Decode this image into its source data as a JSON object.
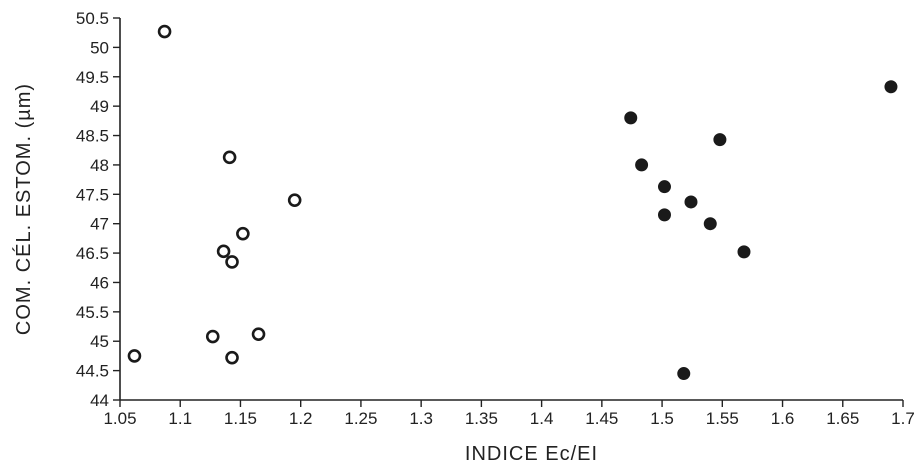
{
  "chart_data": {
    "type": "scatter",
    "title": "",
    "xlabel": "INDICE Ec/EI",
    "ylabel": "COM. CÉL. ESTOM. (µm)",
    "xlim": [
      1.05,
      1.7
    ],
    "ylim": [
      44,
      50.5
    ],
    "xticks": [
      1.05,
      1.1,
      1.15,
      1.2,
      1.25,
      1.3,
      1.35,
      1.4,
      1.45,
      1.5,
      1.55,
      1.6,
      1.65,
      1.7
    ],
    "xtick_labels": [
      "1.05",
      "1.1",
      "1.15",
      "1.2",
      "1.25",
      "1.3",
      "1.35",
      "1.4",
      "1.45",
      "1.5",
      "1.55",
      "1.6",
      "1.65",
      "1.7"
    ],
    "yticks": [
      44,
      44.5,
      45,
      45.5,
      46,
      46.5,
      47,
      47.5,
      48,
      48.5,
      49,
      49.5,
      50,
      50.5
    ],
    "ytick_labels": [
      "44",
      "44.5",
      "45",
      "45.5",
      "46",
      "46.5",
      "47",
      "47.5",
      "48",
      "48.5",
      "49",
      "49.5",
      "50",
      "50.5"
    ],
    "grid": false,
    "legend": "none",
    "series": [
      {
        "marker": "open-circle",
        "color": "#1a1a1a",
        "points": [
          {
            "x": 1.062,
            "y": 44.75
          },
          {
            "x": 1.087,
            "y": 50.27
          },
          {
            "x": 1.127,
            "y": 45.08
          },
          {
            "x": 1.136,
            "y": 46.53
          },
          {
            "x": 1.141,
            "y": 48.13
          },
          {
            "x": 1.143,
            "y": 46.35
          },
          {
            "x": 1.143,
            "y": 44.72
          },
          {
            "x": 1.152,
            "y": 46.83
          },
          {
            "x": 1.165,
            "y": 45.12
          },
          {
            "x": 1.195,
            "y": 47.4
          }
        ]
      },
      {
        "marker": "filled-circle",
        "color": "#1a1a1a",
        "points": [
          {
            "x": 1.474,
            "y": 48.8
          },
          {
            "x": 1.483,
            "y": 48.0
          },
          {
            "x": 1.502,
            "y": 47.63
          },
          {
            "x": 1.502,
            "y": 47.15
          },
          {
            "x": 1.518,
            "y": 44.45
          },
          {
            "x": 1.524,
            "y": 47.37
          },
          {
            "x": 1.54,
            "y": 47.0
          },
          {
            "x": 1.548,
            "y": 48.43
          },
          {
            "x": 1.568,
            "y": 46.52
          },
          {
            "x": 1.69,
            "y": 49.33
          }
        ]
      }
    ]
  }
}
